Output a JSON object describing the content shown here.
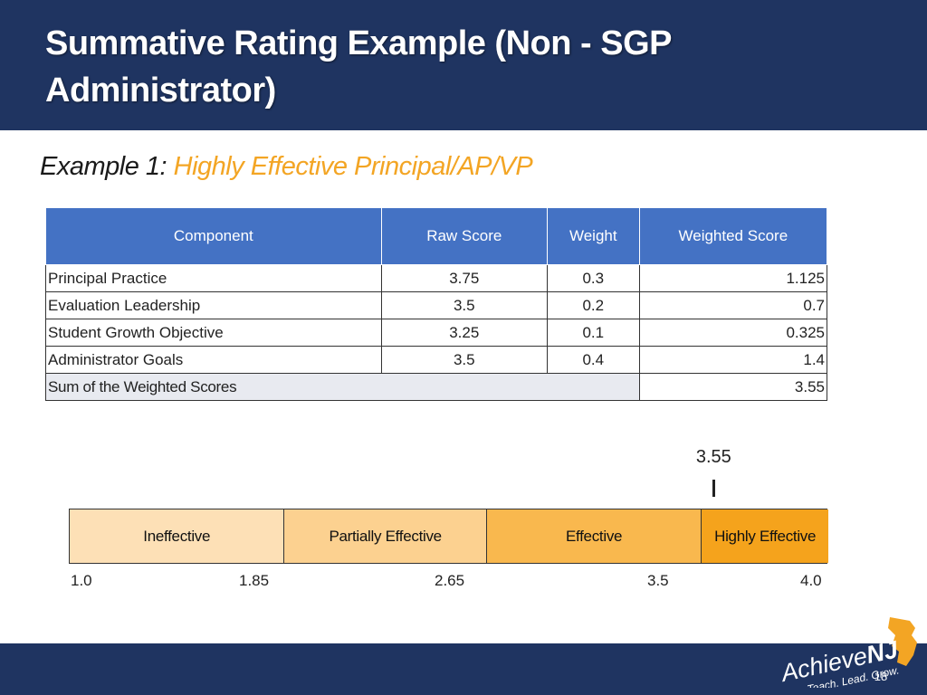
{
  "slide": {
    "title": "Summative Rating Example (Non - SGP Administrator)",
    "subtitle_lead": "Example 1:",
    "subtitle_accent": "Highly Effective Principal/AP/VP",
    "page_number": "18"
  },
  "table": {
    "headers": [
      "Component",
      "Raw Score",
      "Weight",
      "Weighted Score"
    ],
    "rows": [
      {
        "component": "Principal Practice",
        "raw": "3.75",
        "weight": "0.3",
        "weighted": "1.125"
      },
      {
        "component": "Evaluation Leadership",
        "raw": "3.5",
        "weight": "0.2",
        "weighted": "0.7"
      },
      {
        "component": "Student Growth Objective",
        "raw": "3.25",
        "weight": "0.1",
        "weighted": "0.325"
      },
      {
        "component": "Administrator Goals",
        "raw": "3.5",
        "weight": "0.4",
        "weighted": "1.4"
      }
    ],
    "sum_label": "Sum of the Weighted Scores",
    "sum_value": "3.55"
  },
  "scale": {
    "min": 1.0,
    "max": 4.0,
    "score_label": "3.55",
    "score": 3.55,
    "bands": [
      {
        "label": "Ineffective",
        "from": 1.0,
        "to": 1.85,
        "color": "#fde0b6"
      },
      {
        "label": "Partially Effective",
        "from": 1.85,
        "to": 2.65,
        "color": "#fcd190"
      },
      {
        "label": "Effective",
        "from": 2.65,
        "to": 3.5,
        "color": "#f9b84e"
      },
      {
        "label": "Highly Effective",
        "from": 3.5,
        "to": 4.0,
        "color": "#f5a31c"
      }
    ],
    "ticks": [
      "1.0",
      "1.85",
      "2.65",
      "3.5",
      "4.0"
    ]
  },
  "logo": {
    "brand_prefix": "Achieve",
    "brand_suffix": "NJ",
    "tagline": "Teach. Lead. Grow."
  },
  "colors": {
    "header_bg": "#1f3461",
    "table_header": "#4472c4",
    "accent": "#f3a524",
    "nj_orange": "#f3a524"
  }
}
